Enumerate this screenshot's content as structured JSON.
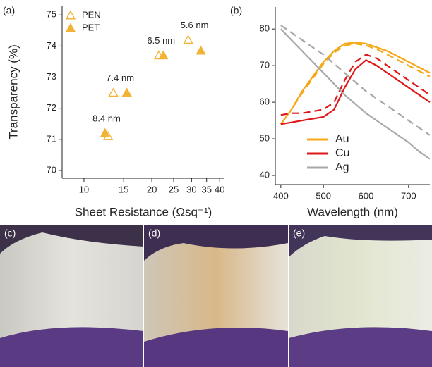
{
  "chart_data": [
    {
      "type": "scatter",
      "panel": "(a)",
      "xlabel": "Sheet Resistance (Ωsq⁻¹)",
      "ylabel": "Transparency (%)",
      "xscale": "log",
      "xlim": [
        8,
        42
      ],
      "xticks": [
        10,
        15,
        20,
        25,
        30,
        35,
        40
      ],
      "ylim": [
        69.75,
        75.3
      ],
      "yticks": [
        70,
        71,
        72,
        73,
        74,
        75
      ],
      "legend": "upper left",
      "series": [
        {
          "name": "PEN",
          "color": "#f2b234",
          "marker": "open",
          "x": [
            12.8,
            13.5,
            21.5,
            29
          ],
          "values": [
            71.1,
            72.5,
            73.7,
            74.2
          ]
        },
        {
          "name": "PET",
          "color": "#f2b234",
          "marker": "filled",
          "x": [
            12.4,
            15.5,
            22.5,
            33
          ],
          "values": [
            71.2,
            72.5,
            73.7,
            73.85
          ]
        }
      ],
      "annotations": [
        "8.4 nm",
        "7.4 nm",
        "6.5 nm",
        "5.6 nm"
      ]
    },
    {
      "type": "line",
      "panel": "(b)",
      "xlabel": "Wavelength (nm)",
      "xlim": [
        387,
        750
      ],
      "xticks": [
        400,
        500,
        600,
        700
      ],
      "ylim": [
        37.5,
        86
      ],
      "yticks": [
        40,
        50,
        60,
        70,
        80
      ],
      "legend": "lower center",
      "x": [
        400,
        425,
        450,
        475,
        500,
        525,
        550,
        575,
        600,
        625,
        650,
        675,
        700,
        725,
        750
      ],
      "series": [
        {
          "name": "Au",
          "color": "#f5a818",
          "values": [
            54,
            58,
            63,
            67,
            71,
            74,
            76,
            76.3,
            76,
            75,
            74,
            72.5,
            71,
            69.5,
            68
          ]
        },
        {
          "color": "#f5a818",
          "dash": true,
          "values": [
            54,
            58,
            62.5,
            66.5,
            70.5,
            73.5,
            75.5,
            76,
            75.5,
            74.5,
            73,
            71.5,
            70,
            68.5,
            67
          ]
        },
        {
          "name": "Cu",
          "color": "#e01818",
          "values": [
            54,
            54.5,
            55,
            55.5,
            56,
            58,
            64,
            69,
            71.5,
            70,
            68,
            66,
            64,
            62,
            60
          ]
        },
        {
          "color": "#e01818",
          "dash": true,
          "values": [
            56.5,
            57,
            57,
            57.5,
            58,
            60,
            66,
            71,
            73,
            72,
            70,
            68,
            66,
            64,
            62
          ]
        },
        {
          "name": "Ag",
          "color": "#a8a8a8",
          "values": [
            80,
            77,
            74,
            71,
            68,
            65,
            62,
            59.5,
            57,
            55,
            53,
            51,
            49,
            46.5,
            44.5
          ]
        },
        {
          "color": "#a8a8a8",
          "dash": true,
          "values": [
            81,
            79,
            77,
            75,
            73,
            70.5,
            68,
            65.5,
            63,
            61,
            59,
            57,
            55,
            53,
            51
          ]
        }
      ]
    }
  ],
  "photos": {
    "labels": [
      "(c)",
      "(d)",
      "(e)"
    ]
  }
}
